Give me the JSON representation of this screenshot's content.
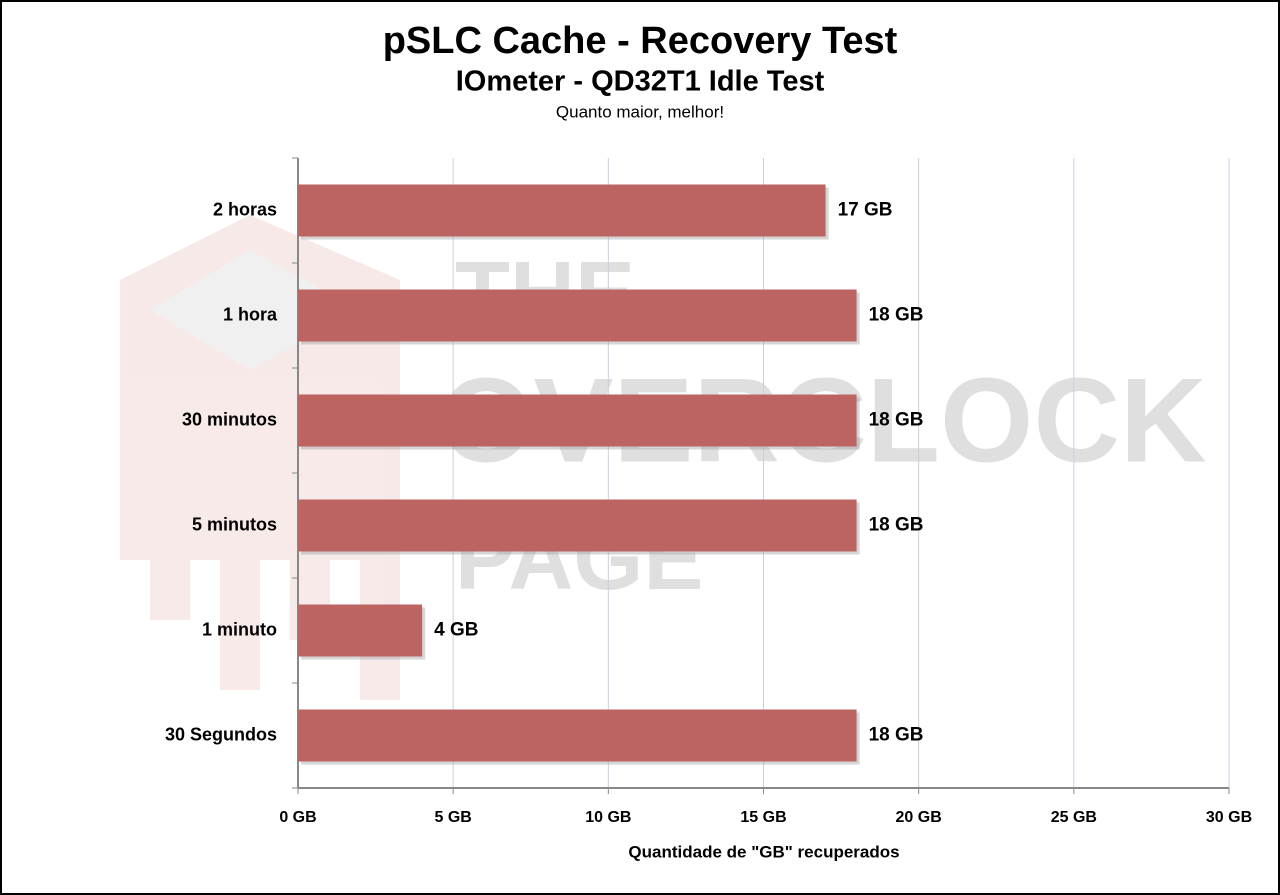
{
  "chart_data": {
    "type": "bar",
    "orientation": "horizontal",
    "title": "pSLC Cache - Recovery Test",
    "subtitle": "IOmeter - QD32T1 Idle Test",
    "note": "Quanto maior, melhor!",
    "watermark": [
      "THE",
      "OVERCLOCK",
      "PAGE"
    ],
    "x_label": "Quantidade de \"GB\" recuperados",
    "categories": [
      "2 horas",
      "1 hora",
      "30 minutos",
      "5 minutos",
      "1 minuto",
      "30 Segundos"
    ],
    "values": [
      17,
      18,
      18,
      18,
      4,
      18
    ],
    "value_labels": [
      "17 GB",
      "18 GB",
      "18 GB",
      "18 GB",
      "4 GB",
      "18 GB"
    ],
    "color": "#bb6462",
    "xlim": [
      0,
      30
    ],
    "xticks": [
      {
        "value": 0,
        "label": "0 GB"
      },
      {
        "value": 5,
        "label": "5 GB"
      },
      {
        "value": 10,
        "label": "10 GB"
      },
      {
        "value": 15,
        "label": "15 GB"
      },
      {
        "value": 20,
        "label": "20 GB"
      },
      {
        "value": 25,
        "label": "25 GB"
      },
      {
        "value": 30,
        "label": "30 GB"
      }
    ],
    "grid": true
  }
}
